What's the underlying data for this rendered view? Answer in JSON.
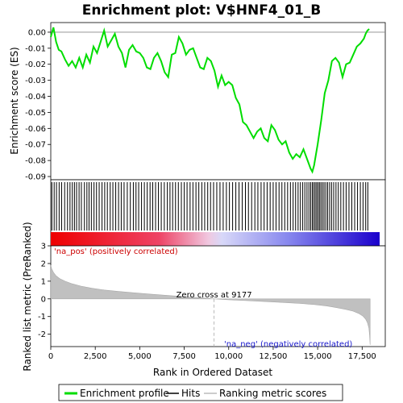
{
  "chart_data": {
    "type": "line",
    "title": "Enrichment plot: V$HNF4_01_B",
    "es_panel": {
      "ylabel": "Enrichment score (ES)",
      "ylim": [
        -0.092,
        0.006
      ],
      "yticks": [
        0.0,
        -0.01,
        -0.02,
        -0.03,
        -0.04,
        -0.05,
        -0.06,
        -0.07,
        -0.08,
        -0.09
      ],
      "ytick_labels": [
        "0.00",
        "-0.01",
        "-0.02",
        "-0.03",
        "-0.04",
        "-0.05",
        "-0.06",
        "-0.07",
        "-0.08",
        "-0.09"
      ],
      "series": [
        {
          "name": "Enrichment profile",
          "color": "#00dd00",
          "x": [
            0,
            150,
            300,
            450,
            600,
            800,
            1000,
            1200,
            1400,
            1600,
            1800,
            2000,
            2200,
            2400,
            2600,
            2800,
            3000,
            3200,
            3400,
            3600,
            3800,
            4000,
            4200,
            4400,
            4600,
            4800,
            5000,
            5200,
            5400,
            5600,
            5800,
            6000,
            6200,
            6400,
            6600,
            6800,
            7000,
            7200,
            7400,
            7600,
            7800,
            8000,
            8200,
            8400,
            8600,
            8800,
            9000,
            9200,
            9400,
            9600,
            9800,
            10000,
            10200,
            10400,
            10600,
            10800,
            11000,
            11200,
            11400,
            11600,
            11800,
            12000,
            12200,
            12400,
            12600,
            12800,
            13000,
            13200,
            13400,
            13600,
            13800,
            14000,
            14200,
            14400,
            14600,
            14700,
            14800,
            15000,
            15200,
            15400,
            15600,
            15800,
            16000,
            16200,
            16400,
            16600,
            16800,
            17000,
            17200,
            17400,
            17600,
            17700,
            17800,
            17900
          ],
          "y": [
            -0.003,
            0.003,
            -0.006,
            -0.011,
            -0.012,
            -0.017,
            -0.021,
            -0.018,
            -0.022,
            -0.016,
            -0.022,
            -0.014,
            -0.019,
            -0.009,
            -0.013,
            -0.006,
            0.001,
            -0.009,
            -0.005,
            -0.001,
            -0.009,
            -0.013,
            -0.022,
            -0.011,
            -0.008,
            -0.012,
            -0.013,
            -0.016,
            -0.022,
            -0.023,
            -0.016,
            -0.013,
            -0.018,
            -0.025,
            -0.028,
            -0.014,
            -0.013,
            -0.003,
            -0.007,
            -0.014,
            -0.011,
            -0.01,
            -0.016,
            -0.022,
            -0.023,
            -0.016,
            -0.018,
            -0.024,
            -0.034,
            -0.027,
            -0.033,
            -0.031,
            -0.033,
            -0.041,
            -0.045,
            -0.056,
            -0.058,
            -0.062,
            -0.066,
            -0.062,
            -0.06,
            -0.066,
            -0.068,
            -0.058,
            -0.061,
            -0.067,
            -0.07,
            -0.068,
            -0.075,
            -0.079,
            -0.076,
            -0.078,
            -0.073,
            -0.079,
            -0.085,
            -0.087,
            -0.083,
            -0.07,
            -0.055,
            -0.038,
            -0.03,
            -0.018,
            -0.016,
            -0.019,
            -0.028,
            -0.02,
            -0.019,
            -0.014,
            -0.009,
            -0.007,
            -0.004,
            -0.001,
            0.001,
            0.002
          ]
        }
      ]
    },
    "hits_panel": {
      "legend_label": "Hits",
      "positions": [
        60,
        190,
        320,
        470,
        610,
        780,
        940,
        1080,
        1210,
        1330,
        1450,
        1590,
        1720,
        1890,
        2030,
        2150,
        2280,
        2430,
        2570,
        2720,
        2880,
        3030,
        3180,
        3340,
        3490,
        3650,
        3810,
        3960,
        4120,
        4300,
        4470,
        4640,
        4790,
        4940,
        5100,
        5260,
        5420,
        5580,
        5730,
        5890,
        6050,
        6210,
        6380,
        6550,
        6700,
        6850,
        7010,
        7170,
        7340,
        7500,
        7660,
        7830,
        7990,
        8160,
        8320,
        8490,
        8650,
        8820,
        8980,
        9150,
        9330,
        9510,
        9690,
        9870,
        10040,
        10220,
        10400,
        10580,
        10760,
        10940,
        11110,
        11290,
        11470,
        11640,
        11820,
        11990,
        12160,
        12330,
        12500,
        12660,
        12830,
        12990,
        13150,
        13310,
        13470,
        13620,
        13760,
        13900,
        14030,
        14160,
        14280,
        14400,
        14510,
        14610,
        14700,
        14780,
        14860,
        14940,
        15020,
        15100,
        15180,
        15270,
        15360,
        15460,
        15560,
        15670,
        15780,
        15900,
        16030,
        16160,
        16300,
        16450,
        16600,
        16760,
        16920,
        17080,
        17240,
        17400,
        17550,
        17700,
        17820
      ]
    },
    "rank_panel": {
      "ylabel": "Ranked list metric (PreRanked)",
      "xlabel": "Rank in Ordered Dataset",
      "legend_label": "Ranking metric scores",
      "ylim": [
        -2.7,
        3.0
      ],
      "yticks": [
        3,
        2,
        1,
        0,
        -1,
        -2
      ],
      "ytick_labels": [
        "3",
        "2",
        "1",
        "0",
        "-1",
        "-2"
      ],
      "xlim": [
        0,
        18800
      ],
      "xticks": [
        0,
        2500,
        5000,
        7500,
        10000,
        12500,
        15000,
        17500
      ],
      "xtick_labels": [
        "0",
        "2,500",
        "5,000",
        "7,500",
        "10,000",
        "12,500",
        "15,000",
        "17,500"
      ],
      "x": [
        0,
        50,
        150,
        300,
        500,
        800,
        1200,
        1700,
        2300,
        3000,
        3800,
        4700,
        5600,
        6500,
        7400,
        8300,
        9177,
        10000,
        11000,
        12000,
        13000,
        14000,
        14800,
        15500,
        16100,
        16600,
        17000,
        17300,
        17550,
        17700,
        17800,
        17880,
        17920,
        17950
      ],
      "y": [
        1.9,
        1.7,
        1.5,
        1.3,
        1.15,
        1.0,
        0.85,
        0.72,
        0.6,
        0.5,
        0.42,
        0.34,
        0.27,
        0.2,
        0.13,
        0.07,
        0.0,
        -0.05,
        -0.1,
        -0.15,
        -0.2,
        -0.26,
        -0.32,
        -0.4,
        -0.5,
        -0.6,
        -0.7,
        -0.82,
        -0.98,
        -1.15,
        -1.35,
        -1.65,
        -2.1,
        -2.6
      ],
      "zero_cross_label": "Zero cross at 9177",
      "zero_cross_x": 9177,
      "pos_label": "'na_pos' (positively correlated)",
      "neg_label": "'na_neg' (negatively correlated)"
    },
    "legend": [
      "Enrichment profile",
      "Hits",
      "Ranking metric scores"
    ]
  }
}
